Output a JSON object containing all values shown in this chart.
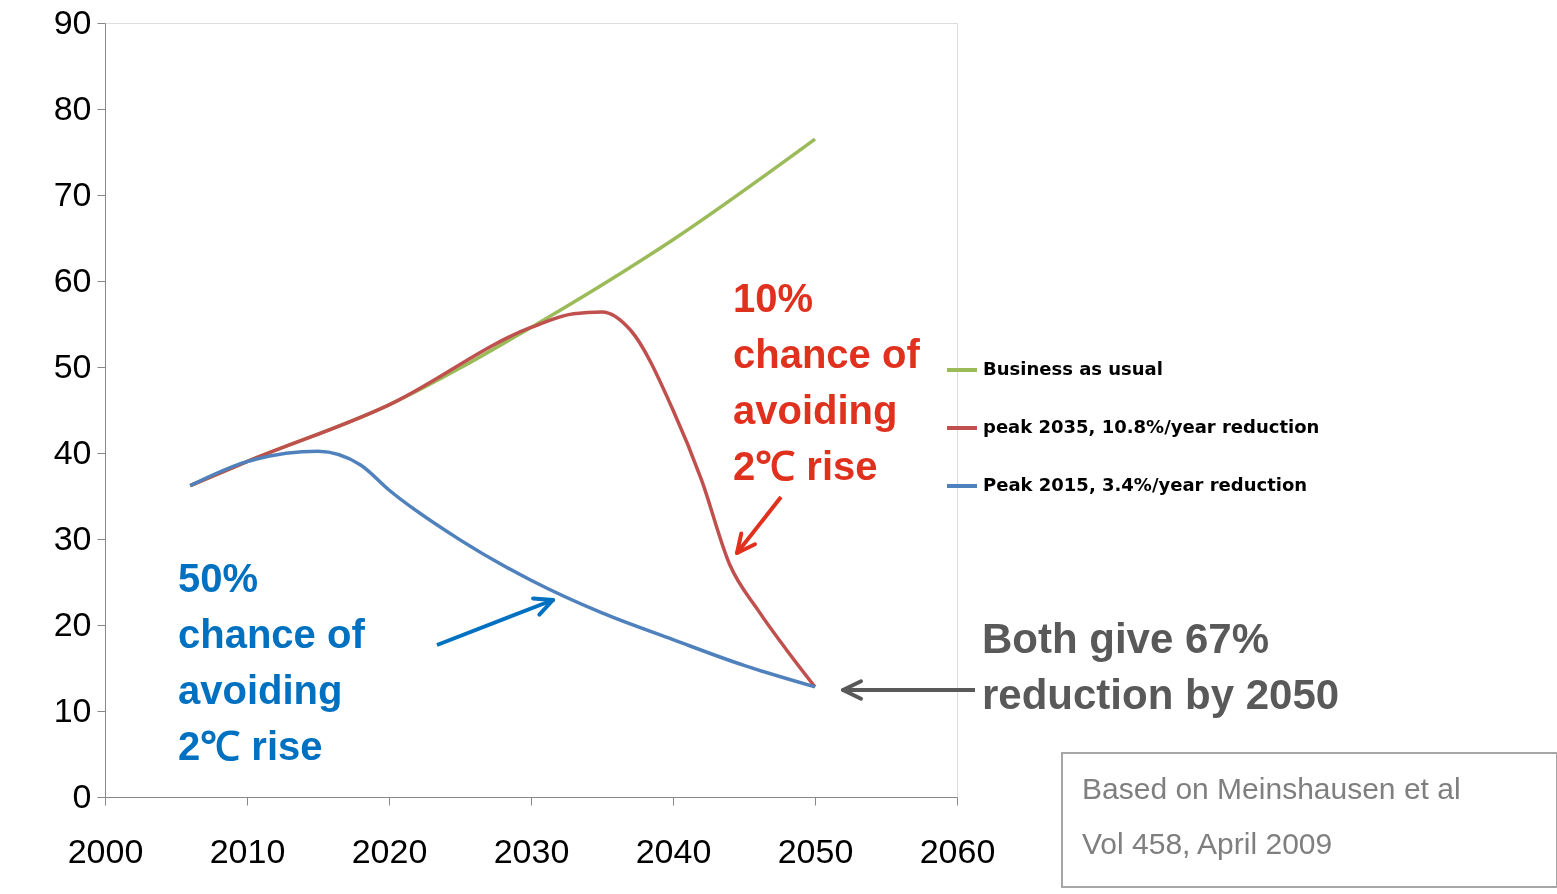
{
  "chart_data": {
    "type": "line",
    "xlim": [
      2000,
      2060
    ],
    "xticks": [
      2000,
      2010,
      2020,
      2030,
      2040,
      2050,
      2060
    ],
    "ylim": [
      0,
      90
    ],
    "yticks": [
      0,
      10,
      20,
      30,
      40,
      50,
      60,
      70,
      80,
      90
    ],
    "grid": false,
    "legend": "right",
    "marker": "none",
    "line_style": "solid",
    "series": [
      {
        "name": "Business as usual",
        "color": "#9bbb59",
        "x": [
          2006,
          2010,
          2020,
          2030,
          2040,
          2050
        ],
        "values": [
          36.2,
          39,
          45.6,
          54.6,
          64.8,
          76.5
        ]
      },
      {
        "name": "peak 2035, 10.8%/year reduction",
        "color": "#c0504d",
        "x": [
          2006,
          2010,
          2020,
          2030,
          2033,
          2035,
          2037,
          2040,
          2042,
          2044,
          2046,
          2048,
          2050
        ],
        "values": [
          36.2,
          39,
          45.6,
          54.6,
          56.2,
          56.4,
          54.3,
          45,
          36.9,
          27,
          21.7,
          17.1,
          12.8
        ]
      },
      {
        "name": "Peak 2015, 3.4%/year reduction",
        "color": "#4f81bd",
        "x": [
          2006,
          2010,
          2015,
          2018,
          2020,
          2025,
          2030,
          2035,
          2040,
          2045,
          2050
        ],
        "values": [
          36.2,
          39,
          40.2,
          38.6,
          35.7,
          29.9,
          25.2,
          21.4,
          18.3,
          15.3,
          12.8
        ]
      }
    ],
    "annotations": [
      "10%\nchance of\navoiding\n2℃ rise",
      "50%\nchance of\navoiding\n2℃ rise",
      "Both give 67%\nreduction by 2050",
      "Based on Meinshausen et al\nVol 458, April 2009"
    ]
  }
}
